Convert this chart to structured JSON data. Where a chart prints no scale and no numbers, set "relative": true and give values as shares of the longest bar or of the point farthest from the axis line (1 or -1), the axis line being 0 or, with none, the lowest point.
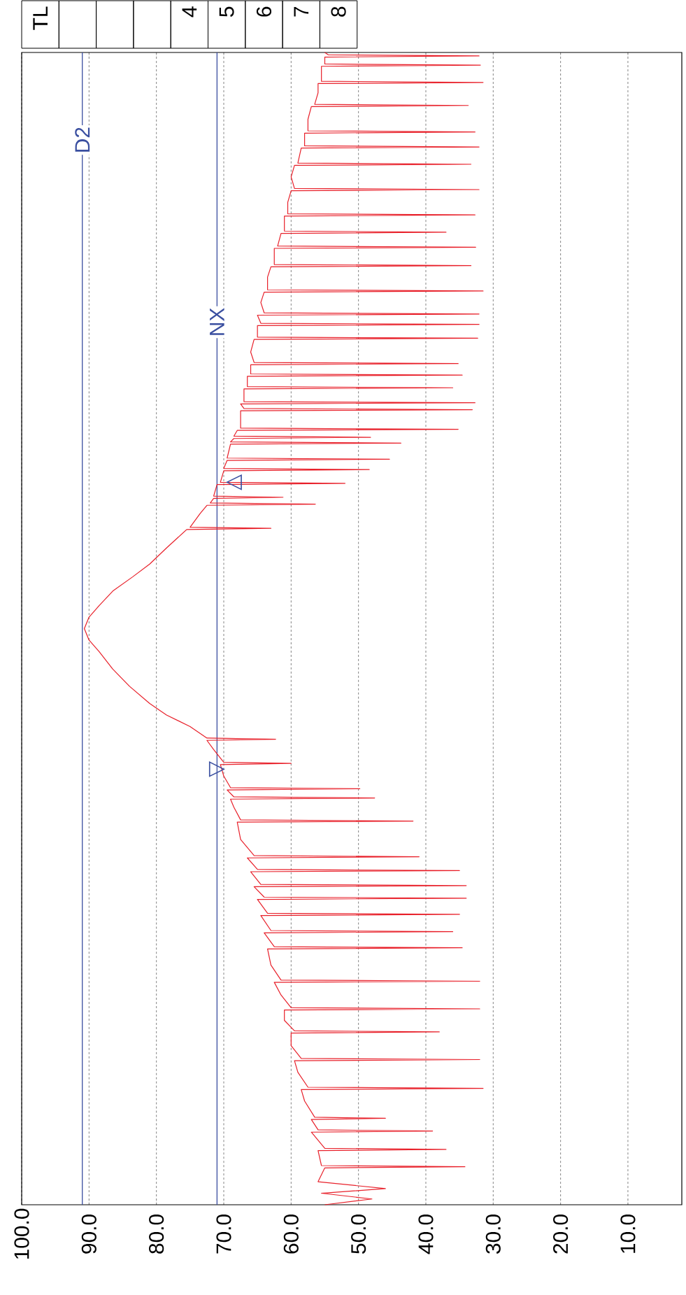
{
  "chart_data": {
    "type": "line",
    "color": "#e8202a",
    "relative": true,
    "x": [
      55,
      48,
      55.5,
      46,
      56,
      55,
      34.2,
      55.5,
      56,
      37,
      55,
      57,
      39,
      56,
      57,
      46,
      56.5,
      58,
      58.5,
      31.5,
      57.5,
      59,
      59.5,
      32,
      58.5,
      60,
      60,
      38,
      59.5,
      61,
      61,
      32,
      60,
      61.5,
      62.5,
      32,
      61.5,
      63,
      63.5,
      34.6,
      62.5,
      64,
      36,
      63,
      64.5,
      35,
      63.5,
      65,
      34,
      64,
      65.5,
      34,
      64.5,
      66,
      35,
      65,
      66.5,
      41,
      65.5,
      67.5,
      68,
      41.9,
      67.5,
      68.5,
      69,
      47.6,
      68.5,
      69.5,
      49.8,
      69,
      70,
      70.5,
      60,
      70,
      71.5,
      72.5,
      62.3,
      72.5,
      75,
      78.5,
      81,
      84,
      86.5,
      88.5,
      90,
      90.7,
      90,
      88.5,
      86.4,
      83.5,
      81,
      78.5,
      75.5,
      63,
      75,
      73.5,
      72.5,
      56.4,
      72,
      71.5,
      61.2,
      71.5,
      71,
      52,
      70.5,
      70,
      48.4,
      70,
      69.5,
      45.4,
      69.5,
      69,
      43.7,
      69,
      68.5,
      48.2,
      68.5,
      68,
      35.2,
      67.5,
      67.5,
      33.1,
      67,
      67.5,
      32.7,
      67,
      67,
      36,
      66.5,
      66.5,
      34.6,
      66,
      66,
      35.2,
      65.5,
      66,
      65.5,
      32.3,
      65,
      65,
      32.1,
      64.5,
      65,
      32.1,
      64,
      64.5,
      64,
      31.5,
      63.5,
      63.5,
      63,
      33.3,
      62.5,
      62.5,
      32.6,
      62,
      61.5,
      37,
      61,
      61,
      32.7,
      60.5,
      60.5,
      60,
      32.1,
      59.5,
      60,
      59.5,
      33.3,
      59,
      58.5,
      32.1,
      58,
      58,
      32.7,
      57.5,
      57.5,
      57,
      33.7,
      56.5,
      56,
      56,
      31.5,
      55.5,
      55.5,
      31.9,
      55,
      55,
      32.1,
      54.5,
      55
    ],
    "values": [
      0,
      0.005,
      0.01,
      0.014,
      0.02,
      0.032,
      0.033,
      0.034,
      0.047,
      0.048,
      0.049,
      0.063,
      0.064,
      0.065,
      0.074,
      0.075,
      0.076,
      0.09,
      0.1,
      0.101,
      0.102,
      0.115,
      0.125,
      0.126,
      0.127,
      0.138,
      0.149,
      0.15,
      0.151,
      0.16,
      0.169,
      0.17,
      0.171,
      0.182,
      0.193,
      0.194,
      0.195,
      0.208,
      0.222,
      0.223,
      0.224,
      0.236,
      0.237,
      0.238,
      0.251,
      0.252,
      0.253,
      0.265,
      0.266,
      0.267,
      0.276,
      0.277,
      0.278,
      0.289,
      0.29,
      0.291,
      0.301,
      0.302,
      0.303,
      0.317,
      0.332,
      0.333,
      0.334,
      0.345,
      0.352,
      0.353,
      0.354,
      0.36,
      0.361,
      0.362,
      0.372,
      0.382,
      0.383,
      0.384,
      0.395,
      0.403,
      0.404,
      0.405,
      0.415,
      0.425,
      0.435,
      0.45,
      0.465,
      0.48,
      0.49,
      0.5,
      0.51,
      0.52,
      0.533,
      0.545,
      0.556,
      0.57,
      0.586,
      0.587,
      0.588,
      0.6,
      0.607,
      0.608,
      0.609,
      0.613,
      0.614,
      0.615,
      0.625,
      0.626,
      0.627,
      0.637,
      0.638,
      0.639,
      0.646,
      0.647,
      0.648,
      0.66,
      0.661,
      0.662,
      0.665,
      0.666,
      0.667,
      0.672,
      0.673,
      0.674,
      0.689,
      0.69,
      0.691,
      0.695,
      0.696,
      0.697,
      0.708,
      0.709,
      0.71,
      0.719,
      0.72,
      0.721,
      0.729,
      0.73,
      0.731,
      0.74,
      0.751,
      0.752,
      0.753,
      0.763,
      0.764,
      0.765,
      0.772,
      0.773,
      0.774,
      0.783,
      0.792,
      0.793,
      0.794,
      0.805,
      0.814,
      0.815,
      0.816,
      0.83,
      0.831,
      0.832,
      0.843,
      0.844,
      0.845,
      0.858,
      0.859,
      0.86,
      0.87,
      0.88,
      0.881,
      0.882,
      0.892,
      0.902,
      0.903,
      0.904,
      0.917,
      0.918,
      0.919,
      0.93,
      0.931,
      0.932,
      0.942,
      0.953,
      0.954,
      0.955,
      0.965,
      0.973,
      0.974,
      0.975,
      0.988,
      0.989,
      0.99,
      0.996,
      0.997,
      0.998,
      1
    ],
    "xlim": [
      100,
      2
    ],
    "xticks": [
      {
        "value": 100,
        "label": "100.0"
      },
      {
        "value": 90,
        "label": "90.0"
      },
      {
        "value": 80,
        "label": "80.0"
      },
      {
        "value": 70,
        "label": "70.0"
      },
      {
        "value": 60,
        "label": "60.0"
      },
      {
        "value": 50,
        "label": "50.0"
      },
      {
        "value": 40,
        "label": "40.0"
      },
      {
        "value": 30,
        "label": "30.0"
      },
      {
        "value": 20,
        "label": "20.0"
      },
      {
        "value": 10,
        "label": "10.0"
      }
    ],
    "tick_labels": "x",
    "grid": "x",
    "ref_lines": [
      {
        "axis": "x",
        "value": 91,
        "label": "D2",
        "color": "#3a4fa0"
      },
      {
        "axis": "x",
        "value": 71,
        "label": "NX",
        "color": "#3a4fa0"
      }
    ],
    "annotations": [
      "TL",
      "4",
      "5",
      "6",
      "7",
      "8",
      {
        "text": "▽",
        "x": 71,
        "y": 0.378
      },
      {
        "text": "△",
        "x": 68.5,
        "y": 0.627
      }
    ]
  }
}
